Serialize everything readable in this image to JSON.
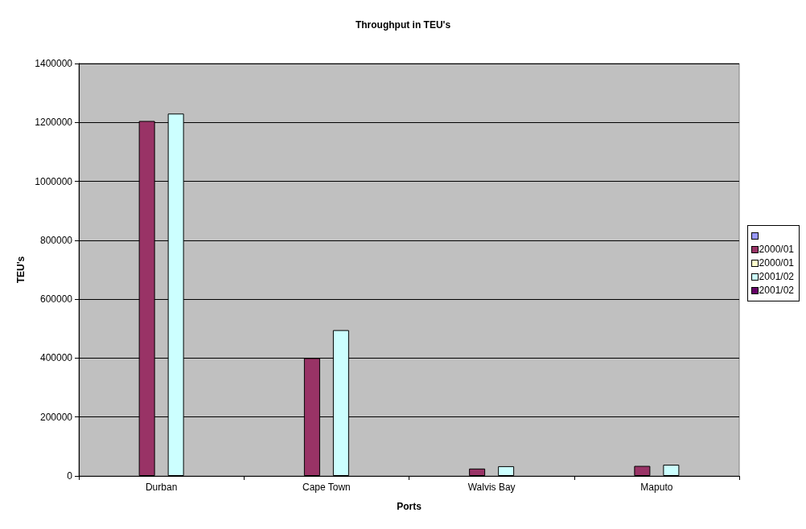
{
  "chart_data": {
    "type": "bar",
    "title": "Throughput in TEU's",
    "xlabel": "Ports",
    "ylabel": "TEU's",
    "categories": [
      "Durban",
      "Cape Town",
      "Walvis Bay",
      "Maputo"
    ],
    "series": [
      {
        "color": "#9999ff",
        "values": [
          null,
          null,
          null,
          null
        ]
      },
      {
        "name": "2000/01",
        "color": "#993366",
        "values": [
          1205000,
          400000,
          25000,
          34000
        ]
      },
      {
        "name": "2000/01",
        "color": "#ffffcc",
        "values": [
          null,
          null,
          null,
          null
        ]
      },
      {
        "name": "2001/02",
        "color": "#ccffff",
        "values": [
          1230000,
          495000,
          33000,
          38000
        ]
      },
      {
        "name": "2001/02",
        "color": "#660066",
        "values": [
          null,
          null,
          null,
          null
        ]
      }
    ],
    "ylim": [
      0,
      1400000
    ],
    "yticks": [
      0,
      200000,
      400000,
      600000,
      800000,
      1000000,
      1200000,
      1400000
    ],
    "grid": "y",
    "legend": "right"
  }
}
